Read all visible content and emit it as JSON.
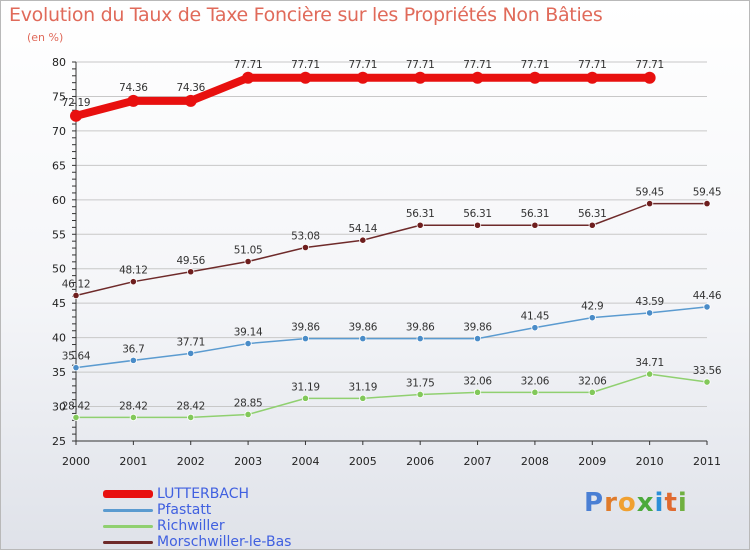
{
  "title": "Evolution du Taux de Taxe Foncière sur les Propriétés Non Bâties",
  "subtitle": "(en %)",
  "brand": {
    "text": "Proxiti",
    "letter_colors": [
      "#4a7fd4",
      "#e07b2a",
      "#f0a030",
      "#4caa3c",
      "#2b8fd8",
      "#e06a30",
      "#70b040"
    ]
  },
  "colors": {
    "grid": "#c8c8c8",
    "axis_text": "#222222",
    "title": "#e06a5a",
    "legend_text": "#4060e0"
  },
  "chart_data": {
    "type": "line",
    "title": "Evolution du Taux de Taxe Foncière sur les Propriétés Non Bâties",
    "ylabel": "(en %)",
    "xlabel": "",
    "categories": [
      "2000",
      "2001",
      "2002",
      "2003",
      "2004",
      "2005",
      "2006",
      "2007",
      "2008",
      "2009",
      "2010",
      "2011"
    ],
    "ylim": [
      25,
      80
    ],
    "yticks": [
      25,
      30,
      35,
      40,
      45,
      50,
      55,
      60,
      65,
      70,
      75,
      80
    ],
    "grid": true,
    "legend_position": "bottom-left",
    "series": [
      {
        "name": "LUTTERBACH",
        "color": "#e8100f",
        "thick": true,
        "values": [
          72.19,
          74.36,
          74.36,
          77.71,
          77.71,
          77.71,
          77.71,
          77.71,
          77.71,
          77.71,
          77.71,
          null
        ],
        "labels": [
          "72.19",
          "74.36",
          "74.36",
          "77.71",
          "77.71",
          "77.71",
          "77.71",
          "77.71",
          "77.71",
          "77.71",
          "77.71",
          null
        ]
      },
      {
        "name": "Pfastatt",
        "color": "#5b9bd0",
        "marker": "#4a8cc8",
        "values": [
          35.64,
          36.7,
          37.71,
          39.14,
          39.86,
          39.86,
          39.86,
          39.86,
          41.45,
          42.9,
          43.59,
          44.46
        ],
        "labels": [
          "35.64",
          "36.7",
          "37.71",
          "39.14",
          "39.86",
          "39.86",
          "39.86",
          "39.86",
          "41.45",
          "42.9",
          "43.59",
          "44.46"
        ]
      },
      {
        "name": "Richwiller",
        "color": "#90d070",
        "marker": "#82c85a",
        "values": [
          28.42,
          28.42,
          28.42,
          28.85,
          31.19,
          31.19,
          31.75,
          32.06,
          32.06,
          32.06,
          34.71,
          33.56
        ],
        "labels": [
          "28.42",
          "28.42",
          "28.42",
          "28.85",
          "31.19",
          "31.19",
          "31.75",
          "32.06",
          "32.06",
          "32.06",
          "34.71",
          "33.56"
        ]
      },
      {
        "name": "Morschwiller-le-Bas",
        "color": "#6e2a2a",
        "marker": "#6e1e1e",
        "values": [
          46.12,
          48.12,
          49.56,
          51.05,
          53.08,
          54.14,
          56.31,
          56.31,
          56.31,
          56.31,
          59.45,
          59.45
        ],
        "labels": [
          "46.12",
          "48.12",
          "49.56",
          "51.05",
          "53.08",
          "54.14",
          "56.31",
          "56.31",
          "56.31",
          "56.31",
          "59.45",
          "59.45"
        ]
      }
    ]
  }
}
